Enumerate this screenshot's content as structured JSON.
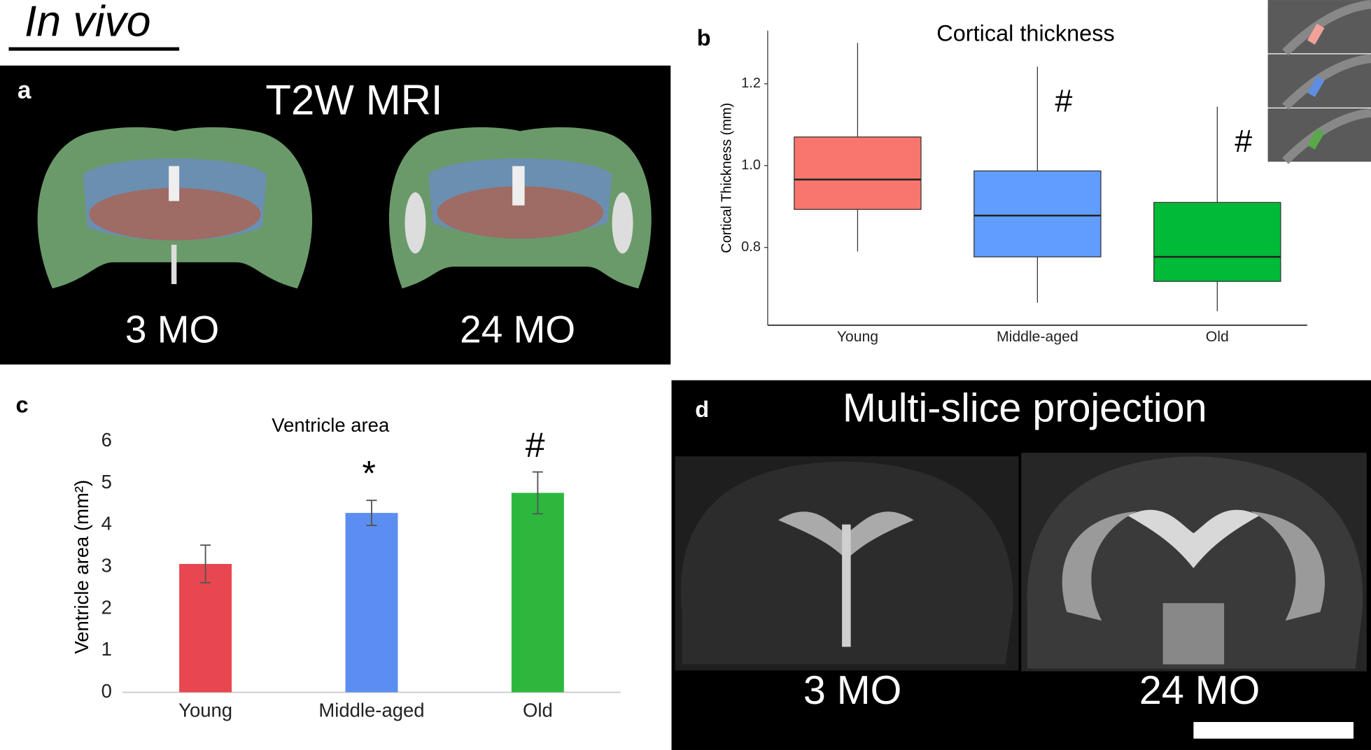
{
  "heading": "In vivo",
  "panels": {
    "a": {
      "label": "a",
      "title": "T2W MRI",
      "captions": [
        "3 MO",
        "24 MO"
      ]
    },
    "b": {
      "label": "b"
    },
    "c": {
      "label": "c"
    },
    "d": {
      "label": "d",
      "title": "Multi-slice projection",
      "captions": [
        "3 MO",
        "24 MO"
      ]
    }
  },
  "chart_data": [
    {
      "type": "box",
      "title": "Cortical thickness",
      "y_label": "Cortical Thickness (mm)",
      "categories": [
        "Young",
        "Middle-aged",
        "Old"
      ],
      "colors": [
        "#f8766d",
        "#619cff",
        "#00ba38"
      ],
      "boxes": [
        {
          "min": 0.79,
          "q1": 0.893,
          "median": 0.966,
          "q3": 1.07,
          "max": 1.3
        },
        {
          "min": 0.665,
          "q1": 0.777,
          "median": 0.878,
          "q3": 0.987,
          "max": 1.242
        },
        {
          "min": 0.644,
          "q1": 0.717,
          "median": 0.777,
          "q3": 0.91,
          "max": 1.144
        }
      ],
      "annotations": [
        null,
        "#",
        "#"
      ],
      "ylim": [
        0.61,
        1.33
      ],
      "yticks": [
        0.8,
        {
          "value": 1,
          "label": "1.0"
        },
        1.2
      ]
    },
    {
      "type": "bar",
      "title": "Ventricle area",
      "y_label": "Ventricle area (mm²)",
      "categories": [
        "Young",
        "Middle-aged",
        "Old"
      ],
      "colors": [
        "#e8474f",
        "#5b8ef0",
        "#2db83d"
      ],
      "values": [
        3.07,
        4.29,
        4.77
      ],
      "errors": [
        0.45,
        0.3,
        0.5
      ],
      "annotations": [
        null,
        "*",
        "#"
      ],
      "ylim": [
        0,
        6
      ],
      "yticks": [
        0,
        1,
        2,
        3,
        4,
        5,
        6
      ]
    }
  ]
}
